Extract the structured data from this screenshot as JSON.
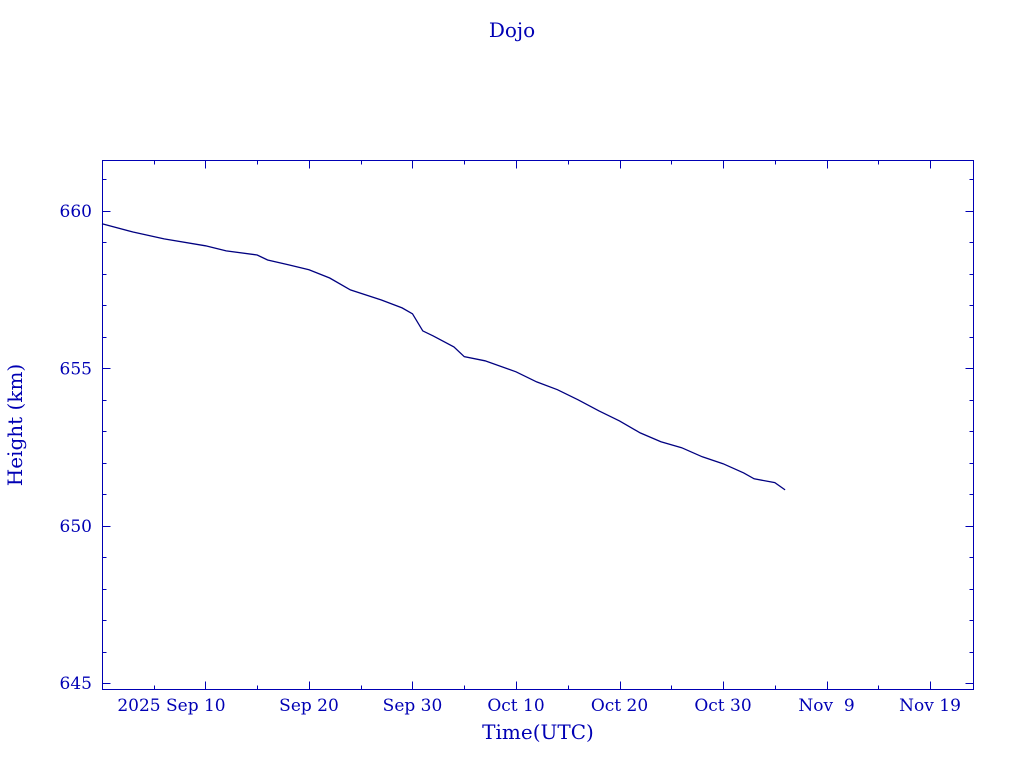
{
  "chart_data": {
    "type": "line",
    "title": "Dojo",
    "xlabel": "Time(UTC)",
    "ylabel": "Height (km)",
    "xlim": [
      "2025-08-31",
      "2025-11-23"
    ],
    "ylim": [
      644.8,
      661.6
    ],
    "x_ticks": [
      {
        "date": "2025-09-10",
        "label": "2025 Sep 10"
      },
      {
        "date": "2025-09-20",
        "label": "Sep 20"
      },
      {
        "date": "2025-09-30",
        "label": "Sep 30"
      },
      {
        "date": "2025-10-10",
        "label": "Oct 10"
      },
      {
        "date": "2025-10-20",
        "label": "Oct 20"
      },
      {
        "date": "2025-10-30",
        "label": "Oct 30"
      },
      {
        "date": "2025-11-09",
        "label": "Nov  9"
      },
      {
        "date": "2025-11-19",
        "label": "Nov 19"
      }
    ],
    "y_ticks": [
      645,
      650,
      655,
      660
    ],
    "grid": false,
    "colors": {
      "axis": "#0000b4",
      "line": "#000080",
      "text": "#0000b4"
    },
    "series": [
      {
        "x": [
          "2025-08-31",
          "2025-09-03",
          "2025-09-06",
          "2025-09-10",
          "2025-09-12",
          "2025-09-15",
          "2025-09-16",
          "2025-09-18",
          "2025-09-20",
          "2025-09-22",
          "2025-09-24",
          "2025-09-27",
          "2025-09-29",
          "2025-09-30",
          "2025-10-01",
          "2025-10-02",
          "2025-10-04",
          "2025-10-05",
          "2025-10-07",
          "2025-10-10",
          "2025-10-12",
          "2025-10-14",
          "2025-10-16",
          "2025-10-18",
          "2025-10-20",
          "2025-10-22",
          "2025-10-24",
          "2025-10-26",
          "2025-10-28",
          "2025-10-30",
          "2025-11-01",
          "2025-11-02",
          "2025-11-04",
          "2025-11-05"
        ],
        "y": [
          659.59,
          659.33,
          659.11,
          658.89,
          658.73,
          658.6,
          658.44,
          658.29,
          658.13,
          657.87,
          657.49,
          657.17,
          656.92,
          656.73,
          656.19,
          656.03,
          655.68,
          655.37,
          655.24,
          654.89,
          654.57,
          654.32,
          654.0,
          653.65,
          653.33,
          652.95,
          652.67,
          652.48,
          652.19,
          651.97,
          651.68,
          651.49,
          651.37,
          651.14
        ]
      }
    ]
  }
}
